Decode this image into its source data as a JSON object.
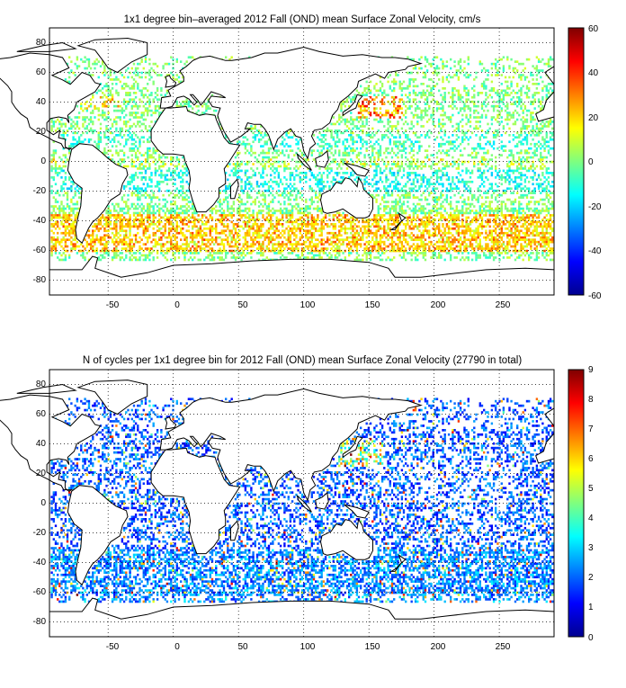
{
  "panels": [
    {
      "id": "velocity",
      "title": "1x1 degree bin–averaged 2012 Fall (OND) mean Surface Zonal Velocity, cm/s",
      "x_ticks": [
        "-50",
        "0",
        "50",
        "100",
        "150",
        "200",
        "250"
      ],
      "y_ticks": [
        "80",
        "60",
        "40",
        "20",
        "0",
        "-20",
        "-40",
        "-60",
        "-80"
      ],
      "colorbar_ticks": [
        "60",
        "40",
        "20",
        "0",
        "-20",
        "-40",
        "-60"
      ],
      "colorbar_range": [
        -60,
        60
      ],
      "colormap": "jet",
      "map_extent": {
        "lon": [
          -95,
          292
        ],
        "lat": [
          -90,
          90
        ]
      }
    },
    {
      "id": "counts",
      "title": "N of cycles per 1x1 degree bin for 2012 Fall (OND) mean Surface Zonal Velocity (27790 in total)",
      "x_ticks": [
        "-50",
        "0",
        "50",
        "100",
        "150",
        "200",
        "250"
      ],
      "y_ticks": [
        "80",
        "60",
        "40",
        "20",
        "0",
        "-20",
        "-40",
        "-60",
        "-80"
      ],
      "colorbar_ticks": [
        "9",
        "8",
        "7",
        "6",
        "5",
        "4",
        "3",
        "2",
        "1",
        "0"
      ],
      "colorbar_range": [
        0,
        9
      ],
      "colormap": "jet",
      "map_extent": {
        "lon": [
          -95,
          292
        ],
        "lat": [
          -90,
          90
        ]
      }
    }
  ],
  "colors": {
    "coastline": "#000000",
    "grid": "#000000",
    "background": "#ffffff",
    "jet_stops": [
      "#00008f",
      "#0000ff",
      "#007fff",
      "#00ffff",
      "#7fff7f",
      "#ffff00",
      "#ff7f00",
      "#ff0000",
      "#7f0000"
    ]
  }
}
